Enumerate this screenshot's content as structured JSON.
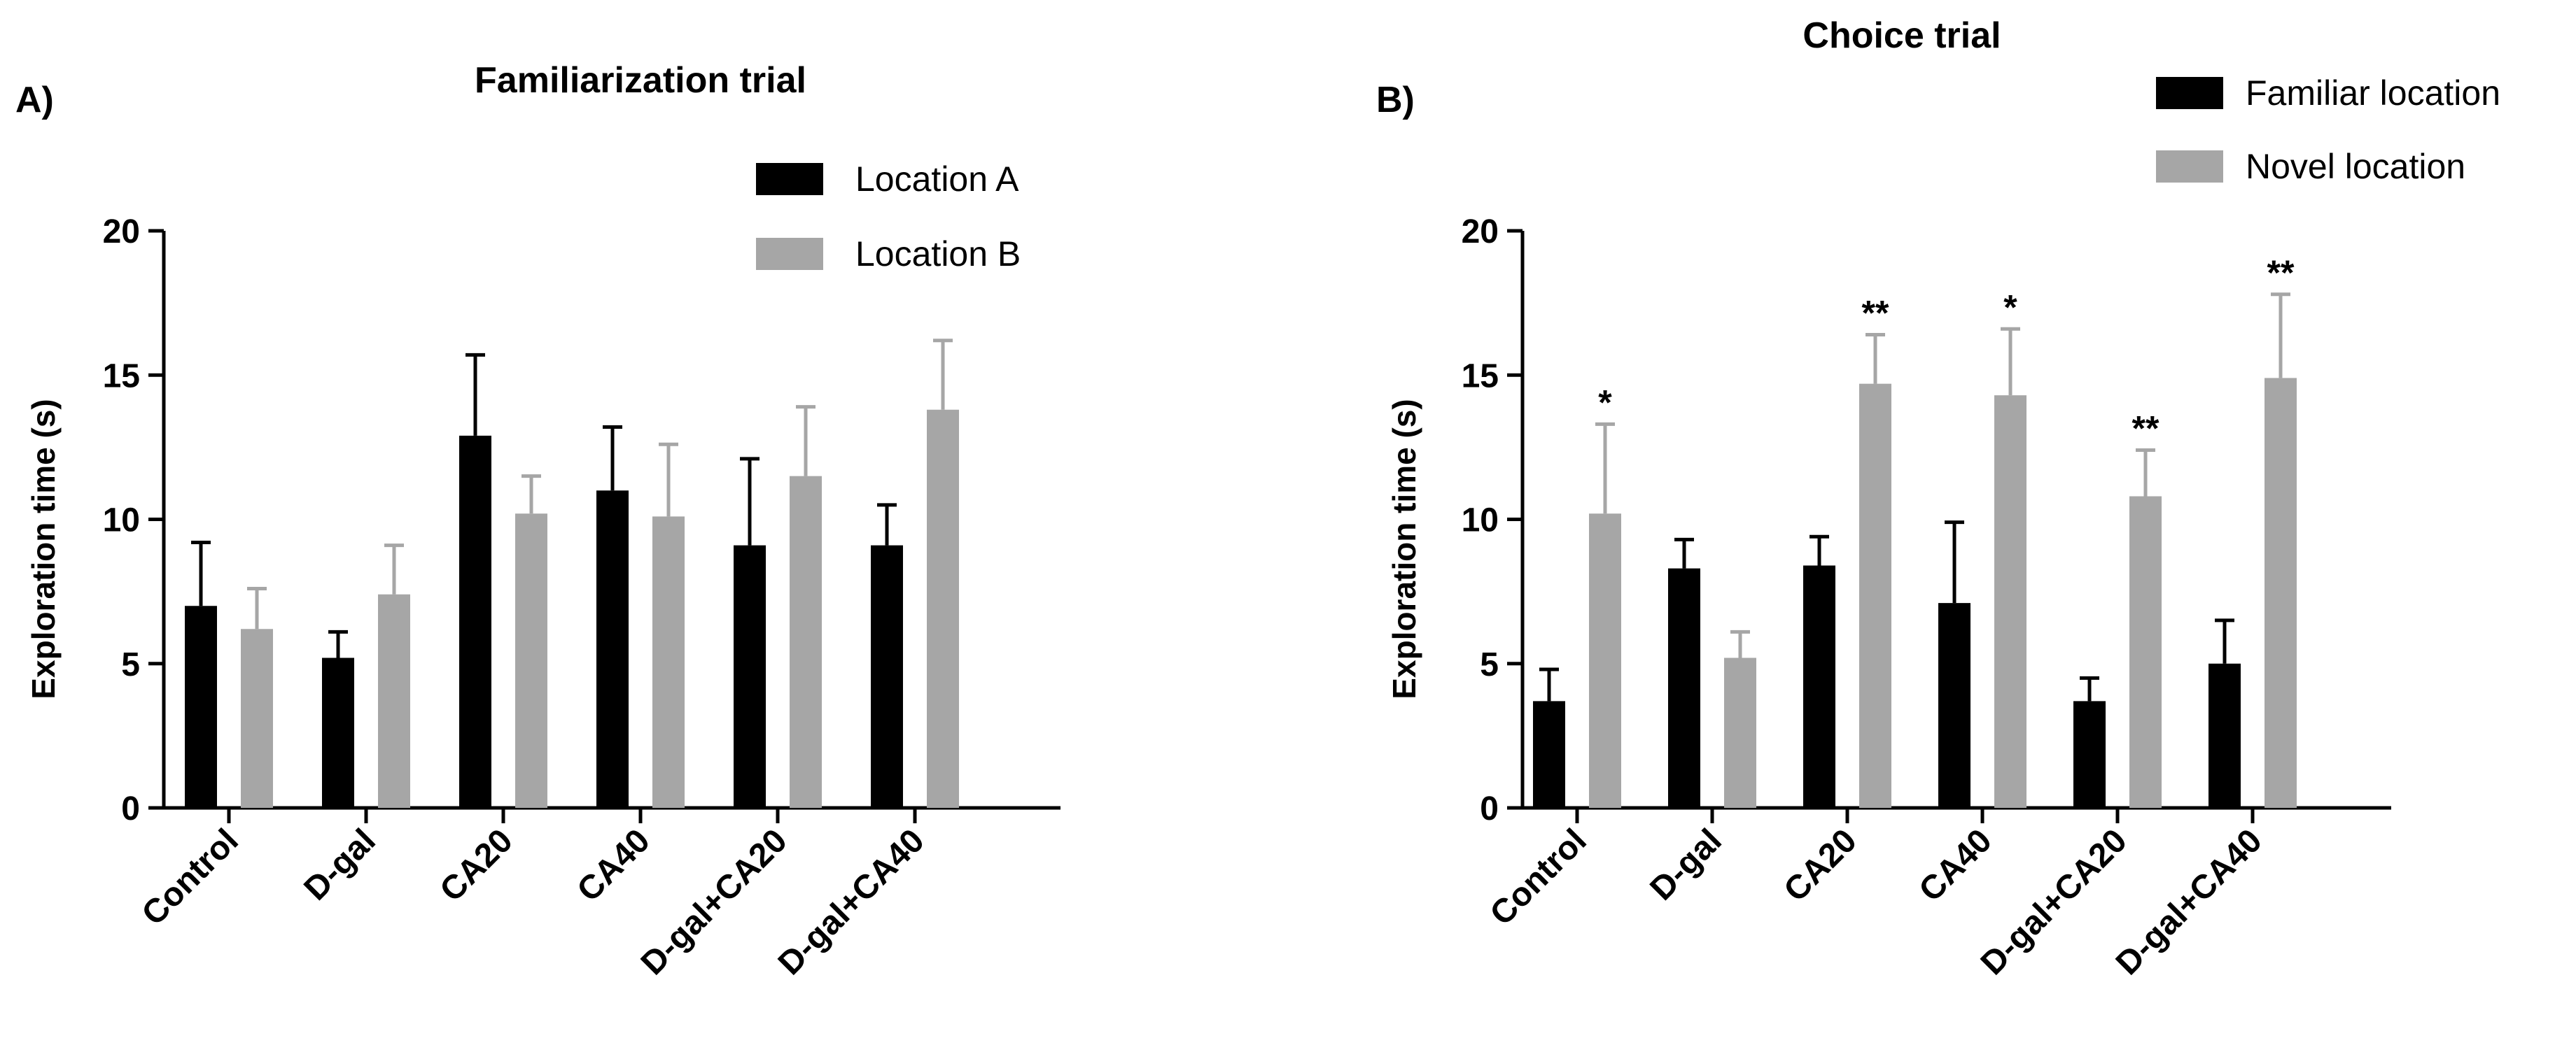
{
  "chart_data": [
    {
      "type": "bar",
      "panel": "A)",
      "title": "Familiarization trial",
      "xlabel": "",
      "ylabel": "Exploration time (s)",
      "ylim": [
        0,
        20
      ],
      "yticks": [
        "0",
        "5",
        "10",
        "15",
        "20"
      ],
      "categories": [
        "Control",
        "D-gal",
        "CA20",
        "CA40",
        "D-gal+CA20",
        "D-gal+CA40"
      ],
      "legend_position": "top-right",
      "series": [
        {
          "name": "Location A",
          "color": "#000000",
          "values": [
            7.0,
            5.2,
            12.9,
            11.0,
            9.1,
            9.1
          ],
          "errors": [
            2.2,
            0.9,
            2.8,
            2.2,
            3.0,
            1.4
          ],
          "significance": [
            "",
            "",
            "",
            "",
            "",
            ""
          ]
        },
        {
          "name": "Location B",
          "color": "#a6a6a6",
          "values": [
            6.2,
            7.4,
            10.2,
            10.1,
            11.5,
            13.8
          ],
          "errors": [
            1.4,
            1.7,
            1.3,
            2.5,
            2.4,
            2.4
          ],
          "significance": [
            "",
            "",
            "",
            "",
            "",
            ""
          ]
        }
      ]
    },
    {
      "type": "bar",
      "panel": "B)",
      "title": "Choice trial",
      "xlabel": "",
      "ylabel": "Exploration time (s)",
      "ylim": [
        0,
        20
      ],
      "yticks": [
        "0",
        "5",
        "10",
        "15",
        "20"
      ],
      "categories": [
        "Control",
        "D-gal",
        "CA20",
        "CA40",
        "D-gal+CA20",
        "D-gal+CA40"
      ],
      "legend_position": "top-right",
      "series": [
        {
          "name": "Familiar location",
          "color": "#000000",
          "values": [
            3.7,
            8.3,
            8.4,
            7.1,
            3.7,
            5.0
          ],
          "errors": [
            1.1,
            1.0,
            1.0,
            2.8,
            0.8,
            1.5
          ],
          "significance": [
            "",
            "",
            "",
            "",
            "",
            ""
          ]
        },
        {
          "name": "Novel location",
          "color": "#a6a6a6",
          "values": [
            10.2,
            5.2,
            14.7,
            14.3,
            10.8,
            14.9
          ],
          "errors": [
            3.1,
            0.9,
            1.7,
            2.3,
            1.6,
            2.9
          ],
          "significance": [
            "*",
            "",
            "**",
            "*",
            "**",
            "**"
          ]
        }
      ]
    }
  ]
}
